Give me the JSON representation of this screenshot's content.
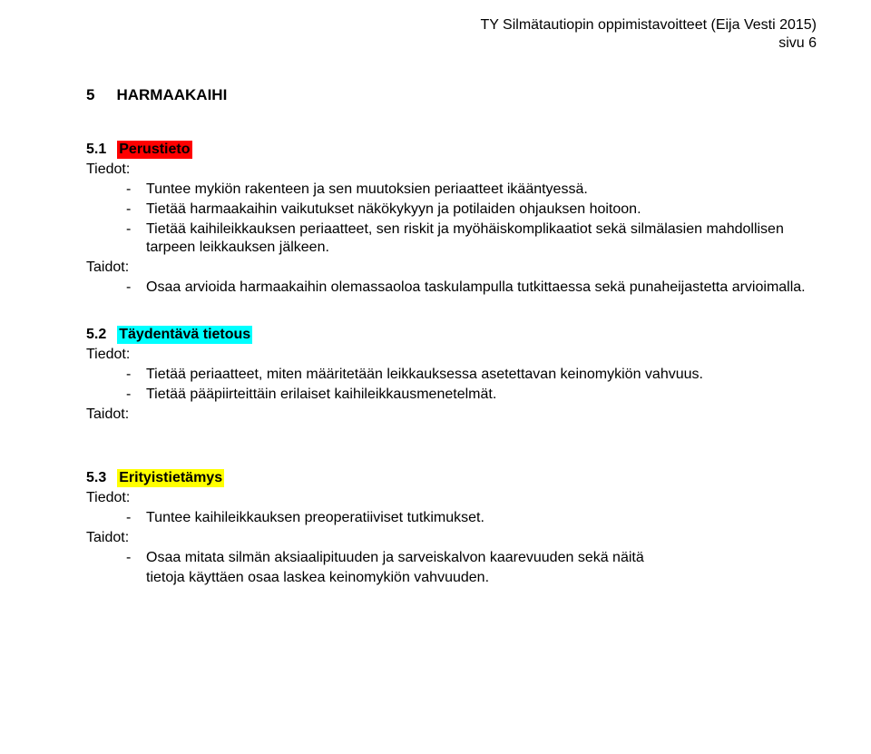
{
  "header": {
    "line1": "TY Silmätautiopin oppimistavoitteet  (Eija Vesti 2015)",
    "line2": "sivu  6"
  },
  "chapter": {
    "num": "5",
    "title": "HARMAAKAIHI"
  },
  "labels": {
    "tiedot": "Tiedot:",
    "taidot": "Taidot:"
  },
  "s1": {
    "num": "5.1",
    "title": "Perustieto",
    "tiedot": [
      "Tuntee mykiön rakenteen ja sen muutoksien periaatteet ikääntyessä.",
      "Tietää harmaakaihin vaikutukset näkökykyyn ja potilaiden ohjauksen hoitoon.",
      "Tietää kaihileikkauksen periaatteet, sen riskit ja myöhäiskomplikaatiot sekä silmälasien mahdollisen tarpeen leikkauksen jälkeen."
    ],
    "taidot": [
      "Osaa arvioida harmaakaihin olemassaoloa taskulampulla tutkittaessa sekä punaheijastetta arvioimalla."
    ]
  },
  "s2": {
    "num": "5.2",
    "title": "Täydentävä tietous",
    "tiedot": [
      "Tietää periaatteet, miten määritetään leikkauksessa asetettavan keinomykiön vahvuus.",
      "Tietää pääpiirteittäin erilaiset kaihileikkausmenetelmät."
    ]
  },
  "s3": {
    "num": "5.3",
    "title": "Erityistietämys",
    "tiedot": [
      "Tuntee kaihileikkauksen preoperatiiviset tutkimukset."
    ],
    "taidot_line1": "Osaa mitata silmän aksiaalipituuden ja sarveiskalvon kaarevuuden sekä näitä",
    "taidot_line2": "tietoja käyttäen osaa laskea keinomykiön vahvuuden."
  }
}
